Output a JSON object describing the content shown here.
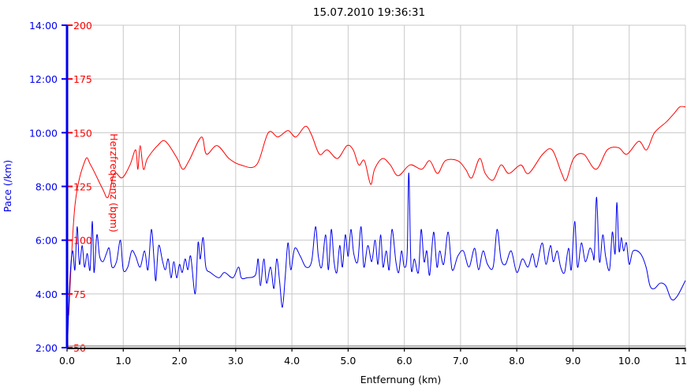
{
  "chart_data": {
    "type": "line",
    "title": "15.07.2010 19:36:31",
    "xlabel": "Entfernung (km)",
    "ylabel_left": "Pace (/km)",
    "ylabel_right": "Herzfrequenz (bpm)",
    "xlim": [
      0,
      11
    ],
    "x_ticks": [
      "0.0",
      "1.0",
      "2.0",
      "3.0",
      "4.0",
      "5.0",
      "6.0",
      "7.0",
      "8.0",
      "9.0",
      "10.0",
      "11.0"
    ],
    "pace_lim": [
      2,
      14
    ],
    "pace_ticks": [
      "2:00",
      "4:00",
      "6:00",
      "8:00",
      "10:00",
      "12:00",
      "14:00"
    ],
    "hr_lim": [
      50,
      200
    ],
    "hr_ticks": [
      "50",
      "75",
      "100",
      "125",
      "150",
      "175",
      "200"
    ],
    "grid": true,
    "colors": {
      "pace": "#0000ee",
      "hr": "#ff0000",
      "grid": "#c8c8c8"
    },
    "series": [
      {
        "name": "Herzfrequenz (bpm)",
        "axis": "hr",
        "points": [
          [
            0.03,
            65
          ],
          [
            0.14,
            116
          ],
          [
            0.32,
            137
          ],
          [
            0.42,
            135
          ],
          [
            0.63,
            124
          ],
          [
            0.73,
            120
          ],
          [
            0.84,
            131
          ],
          [
            0.98,
            129
          ],
          [
            1.12,
            135
          ],
          [
            1.22,
            142
          ],
          [
            1.26,
            133
          ],
          [
            1.3,
            144
          ],
          [
            1.36,
            133
          ],
          [
            1.43,
            138
          ],
          [
            1.61,
            144
          ],
          [
            1.75,
            146
          ],
          [
            1.96,
            138
          ],
          [
            2.06,
            133
          ],
          [
            2.17,
            137
          ],
          [
            2.39,
            148
          ],
          [
            2.48,
            140
          ],
          [
            2.67,
            144
          ],
          [
            2.88,
            138
          ],
          [
            3.09,
            135
          ],
          [
            3.37,
            135
          ],
          [
            3.58,
            150
          ],
          [
            3.75,
            148
          ],
          [
            3.93,
            151
          ],
          [
            4.07,
            148
          ],
          [
            4.24,
            153
          ],
          [
            4.35,
            149
          ],
          [
            4.49,
            140
          ],
          [
            4.63,
            142
          ],
          [
            4.81,
            138
          ],
          [
            4.98,
            144
          ],
          [
            5.09,
            142
          ],
          [
            5.19,
            135
          ],
          [
            5.29,
            137
          ],
          [
            5.4,
            126
          ],
          [
            5.47,
            133
          ],
          [
            5.61,
            138
          ],
          [
            5.75,
            135
          ],
          [
            5.89,
            130
          ],
          [
            6.1,
            135
          ],
          [
            6.31,
            133
          ],
          [
            6.45,
            137
          ],
          [
            6.59,
            131
          ],
          [
            6.73,
            137
          ],
          [
            6.95,
            137
          ],
          [
            7.09,
            133
          ],
          [
            7.2,
            129
          ],
          [
            7.34,
            138
          ],
          [
            7.44,
            131
          ],
          [
            7.58,
            128
          ],
          [
            7.72,
            135
          ],
          [
            7.86,
            131
          ],
          [
            8.07,
            135
          ],
          [
            8.21,
            131
          ],
          [
            8.46,
            140
          ],
          [
            8.63,
            142
          ],
          [
            8.8,
            131
          ],
          [
            8.88,
            128
          ],
          [
            9.01,
            138
          ],
          [
            9.19,
            140
          ],
          [
            9.41,
            133
          ],
          [
            9.61,
            142
          ],
          [
            9.81,
            143
          ],
          [
            9.96,
            140
          ],
          [
            10.17,
            146
          ],
          [
            10.31,
            142
          ],
          [
            10.45,
            150
          ],
          [
            10.66,
            155
          ],
          [
            10.8,
            159
          ],
          [
            10.9,
            162
          ],
          [
            11.0,
            162
          ]
        ]
      },
      {
        "name": "Pace (/km)",
        "axis": "pace",
        "points": [
          [
            0.01,
            2.2
          ],
          [
            0.05,
            4.5
          ],
          [
            0.1,
            5.6
          ],
          [
            0.14,
            4.9
          ],
          [
            0.18,
            6.5
          ],
          [
            0.22,
            5.1
          ],
          [
            0.27,
            5.8
          ],
          [
            0.31,
            5.0
          ],
          [
            0.36,
            5.5
          ],
          [
            0.41,
            4.9
          ],
          [
            0.45,
            6.7
          ],
          [
            0.48,
            4.8
          ],
          [
            0.53,
            6.2
          ],
          [
            0.58,
            5.4
          ],
          [
            0.64,
            5.2
          ],
          [
            0.7,
            5.5
          ],
          [
            0.75,
            5.7
          ],
          [
            0.8,
            5.0
          ],
          [
            0.88,
            5.2
          ],
          [
            0.95,
            6.0
          ],
          [
            1.0,
            4.9
          ],
          [
            1.08,
            5.0
          ],
          [
            1.15,
            5.6
          ],
          [
            1.22,
            5.4
          ],
          [
            1.3,
            5.0
          ],
          [
            1.38,
            5.6
          ],
          [
            1.44,
            4.9
          ],
          [
            1.5,
            6.4
          ],
          [
            1.55,
            5.2
          ],
          [
            1.58,
            4.5
          ],
          [
            1.63,
            5.8
          ],
          [
            1.7,
            5.2
          ],
          [
            1.75,
            4.9
          ],
          [
            1.8,
            5.3
          ],
          [
            1.85,
            4.6
          ],
          [
            1.9,
            5.2
          ],
          [
            1.95,
            4.6
          ],
          [
            2.0,
            5.1
          ],
          [
            2.05,
            4.8
          ],
          [
            2.1,
            5.3
          ],
          [
            2.15,
            4.9
          ],
          [
            2.2,
            5.4
          ],
          [
            2.28,
            4.0
          ],
          [
            2.33,
            5.9
          ],
          [
            2.37,
            5.3
          ],
          [
            2.42,
            6.1
          ],
          [
            2.47,
            5.0
          ],
          [
            2.55,
            4.8
          ],
          [
            2.7,
            4.6
          ],
          [
            2.8,
            4.8
          ],
          [
            2.95,
            4.6
          ],
          [
            3.05,
            5.0
          ],
          [
            3.1,
            4.6
          ],
          [
            3.2,
            4.6
          ],
          [
            3.35,
            4.7
          ],
          [
            3.4,
            5.3
          ],
          [
            3.44,
            4.3
          ],
          [
            3.5,
            5.3
          ],
          [
            3.55,
            4.4
          ],
          [
            3.62,
            5.0
          ],
          [
            3.68,
            4.2
          ],
          [
            3.73,
            5.3
          ],
          [
            3.78,
            4.5
          ],
          [
            3.83,
            3.5
          ],
          [
            3.88,
            4.6
          ],
          [
            3.93,
            5.9
          ],
          [
            3.98,
            4.9
          ],
          [
            4.05,
            5.7
          ],
          [
            4.15,
            5.4
          ],
          [
            4.25,
            5.0
          ],
          [
            4.35,
            5.2
          ],
          [
            4.42,
            6.5
          ],
          [
            4.47,
            5.4
          ],
          [
            4.53,
            5.0
          ],
          [
            4.6,
            6.2
          ],
          [
            4.65,
            4.9
          ],
          [
            4.7,
            6.4
          ],
          [
            4.75,
            5.2
          ],
          [
            4.8,
            4.8
          ],
          [
            4.85,
            5.8
          ],
          [
            4.9,
            5.0
          ],
          [
            4.95,
            6.2
          ],
          [
            5.0,
            5.4
          ],
          [
            5.05,
            6.4
          ],
          [
            5.1,
            5.5
          ],
          [
            5.17,
            5.2
          ],
          [
            5.23,
            6.5
          ],
          [
            5.28,
            5.0
          ],
          [
            5.35,
            5.8
          ],
          [
            5.42,
            5.2
          ],
          [
            5.48,
            6.0
          ],
          [
            5.53,
            5.1
          ],
          [
            5.58,
            6.2
          ],
          [
            5.62,
            5.0
          ],
          [
            5.68,
            5.6
          ],
          [
            5.73,
            4.9
          ],
          [
            5.78,
            6.4
          ],
          [
            5.85,
            5.2
          ],
          [
            5.9,
            4.8
          ],
          [
            5.95,
            5.6
          ],
          [
            6.0,
            5.0
          ],
          [
            6.05,
            5.5
          ],
          [
            6.08,
            8.5
          ],
          [
            6.12,
            5.0
          ],
          [
            6.18,
            5.3
          ],
          [
            6.25,
            4.8
          ],
          [
            6.3,
            6.4
          ],
          [
            6.35,
            5.2
          ],
          [
            6.4,
            5.6
          ],
          [
            6.45,
            4.7
          ],
          [
            6.52,
            6.3
          ],
          [
            6.58,
            5.0
          ],
          [
            6.63,
            5.6
          ],
          [
            6.7,
            5.1
          ],
          [
            6.78,
            6.3
          ],
          [
            6.85,
            4.9
          ],
          [
            6.95,
            5.4
          ],
          [
            7.05,
            5.6
          ],
          [
            7.15,
            5.0
          ],
          [
            7.25,
            5.7
          ],
          [
            7.32,
            4.9
          ],
          [
            7.4,
            5.6
          ],
          [
            7.48,
            5.1
          ],
          [
            7.58,
            5.0
          ],
          [
            7.65,
            6.4
          ],
          [
            7.72,
            5.3
          ],
          [
            7.8,
            5.1
          ],
          [
            7.9,
            5.6
          ],
          [
            8.0,
            4.8
          ],
          [
            8.1,
            5.3
          ],
          [
            8.2,
            5.0
          ],
          [
            8.28,
            5.5
          ],
          [
            8.35,
            5.0
          ],
          [
            8.45,
            5.9
          ],
          [
            8.52,
            5.1
          ],
          [
            8.6,
            5.8
          ],
          [
            8.65,
            5.2
          ],
          [
            8.72,
            5.6
          ],
          [
            8.78,
            5.0
          ],
          [
            8.85,
            4.8
          ],
          [
            8.92,
            5.7
          ],
          [
            8.97,
            4.9
          ],
          [
            9.03,
            6.7
          ],
          [
            9.08,
            5.0
          ],
          [
            9.15,
            5.9
          ],
          [
            9.22,
            5.2
          ],
          [
            9.3,
            5.7
          ],
          [
            9.35,
            5.5
          ],
          [
            9.38,
            5.4
          ],
          [
            9.42,
            7.6
          ],
          [
            9.47,
            5.2
          ],
          [
            9.53,
            6.2
          ],
          [
            9.58,
            5.4
          ],
          [
            9.65,
            4.9
          ],
          [
            9.7,
            6.3
          ],
          [
            9.75,
            5.5
          ],
          [
            9.78,
            7.4
          ],
          [
            9.82,
            5.6
          ],
          [
            9.86,
            6.1
          ],
          [
            9.9,
            5.6
          ],
          [
            9.95,
            5.9
          ],
          [
            10.0,
            5.1
          ],
          [
            10.07,
            5.6
          ],
          [
            10.2,
            5.5
          ],
          [
            10.3,
            5.0
          ],
          [
            10.37,
            4.3
          ],
          [
            10.45,
            4.2
          ],
          [
            10.55,
            4.4
          ],
          [
            10.65,
            4.3
          ],
          [
            10.75,
            3.8
          ],
          [
            10.85,
            3.9
          ],
          [
            11.0,
            4.5
          ]
        ]
      }
    ]
  }
}
